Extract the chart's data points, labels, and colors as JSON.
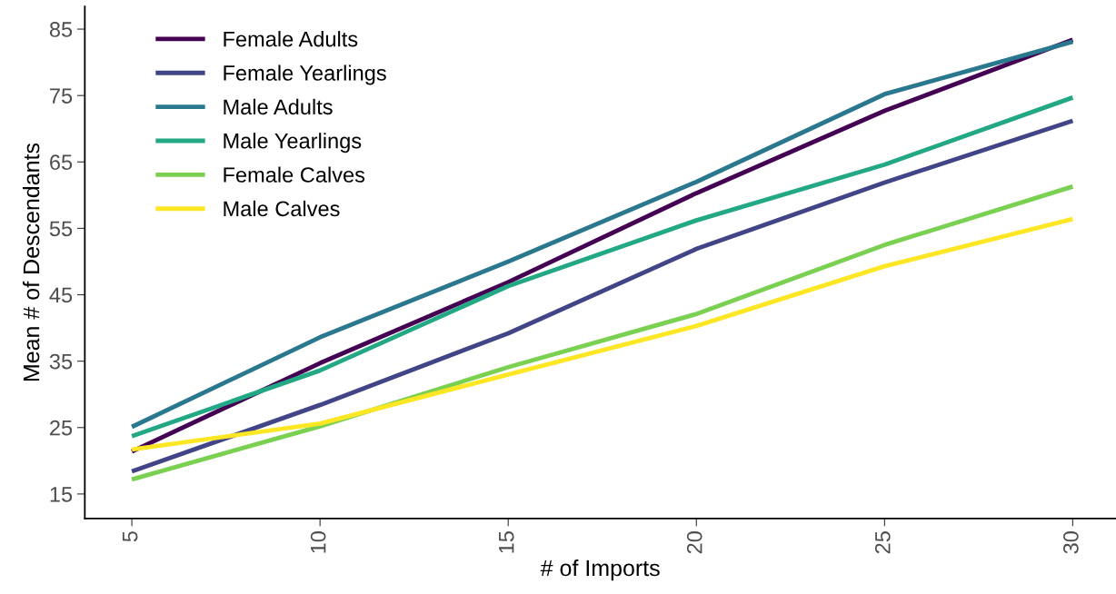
{
  "chart_data": {
    "type": "line",
    "xlabel": "# of Imports",
    "ylabel": "Mean # of Descendants",
    "x": [
      5,
      10,
      15,
      20,
      25,
      30
    ],
    "series": [
      {
        "name": "Female Adults",
        "color": "#440154",
        "values": [
          21.4,
          34.7,
          46.9,
          60.3,
          72.7,
          83.4
        ]
      },
      {
        "name": "Female Yearlings",
        "color": "#414487",
        "values": [
          18.4,
          28.4,
          39.2,
          51.9,
          61.9,
          71.2
        ]
      },
      {
        "name": "Male Adults",
        "color": "#2a788e",
        "values": [
          25.1,
          38.6,
          50.0,
          62.0,
          75.2,
          83.1
        ]
      },
      {
        "name": "Male Yearlings",
        "color": "#22a884",
        "values": [
          23.7,
          33.6,
          46.3,
          56.2,
          64.6,
          74.7
        ]
      },
      {
        "name": "Female Calves",
        "color": "#7ad151",
        "values": [
          17.2,
          25.2,
          34.1,
          42.1,
          52.5,
          61.3
        ]
      },
      {
        "name": "Male Calves",
        "color": "#fde725",
        "values": [
          21.7,
          25.6,
          33.0,
          40.3,
          49.3,
          56.4
        ]
      }
    ],
    "xlim": [
      3.75,
      31.15
    ],
    "ylim": [
      11.3,
      88.4
    ],
    "xticks": [
      5,
      10,
      15,
      20,
      25,
      30
    ],
    "yticks": [
      15,
      25,
      35,
      45,
      55,
      65,
      75,
      85
    ],
    "grid": false,
    "legend": "top left",
    "marker": "none",
    "line_style": "solid"
  }
}
